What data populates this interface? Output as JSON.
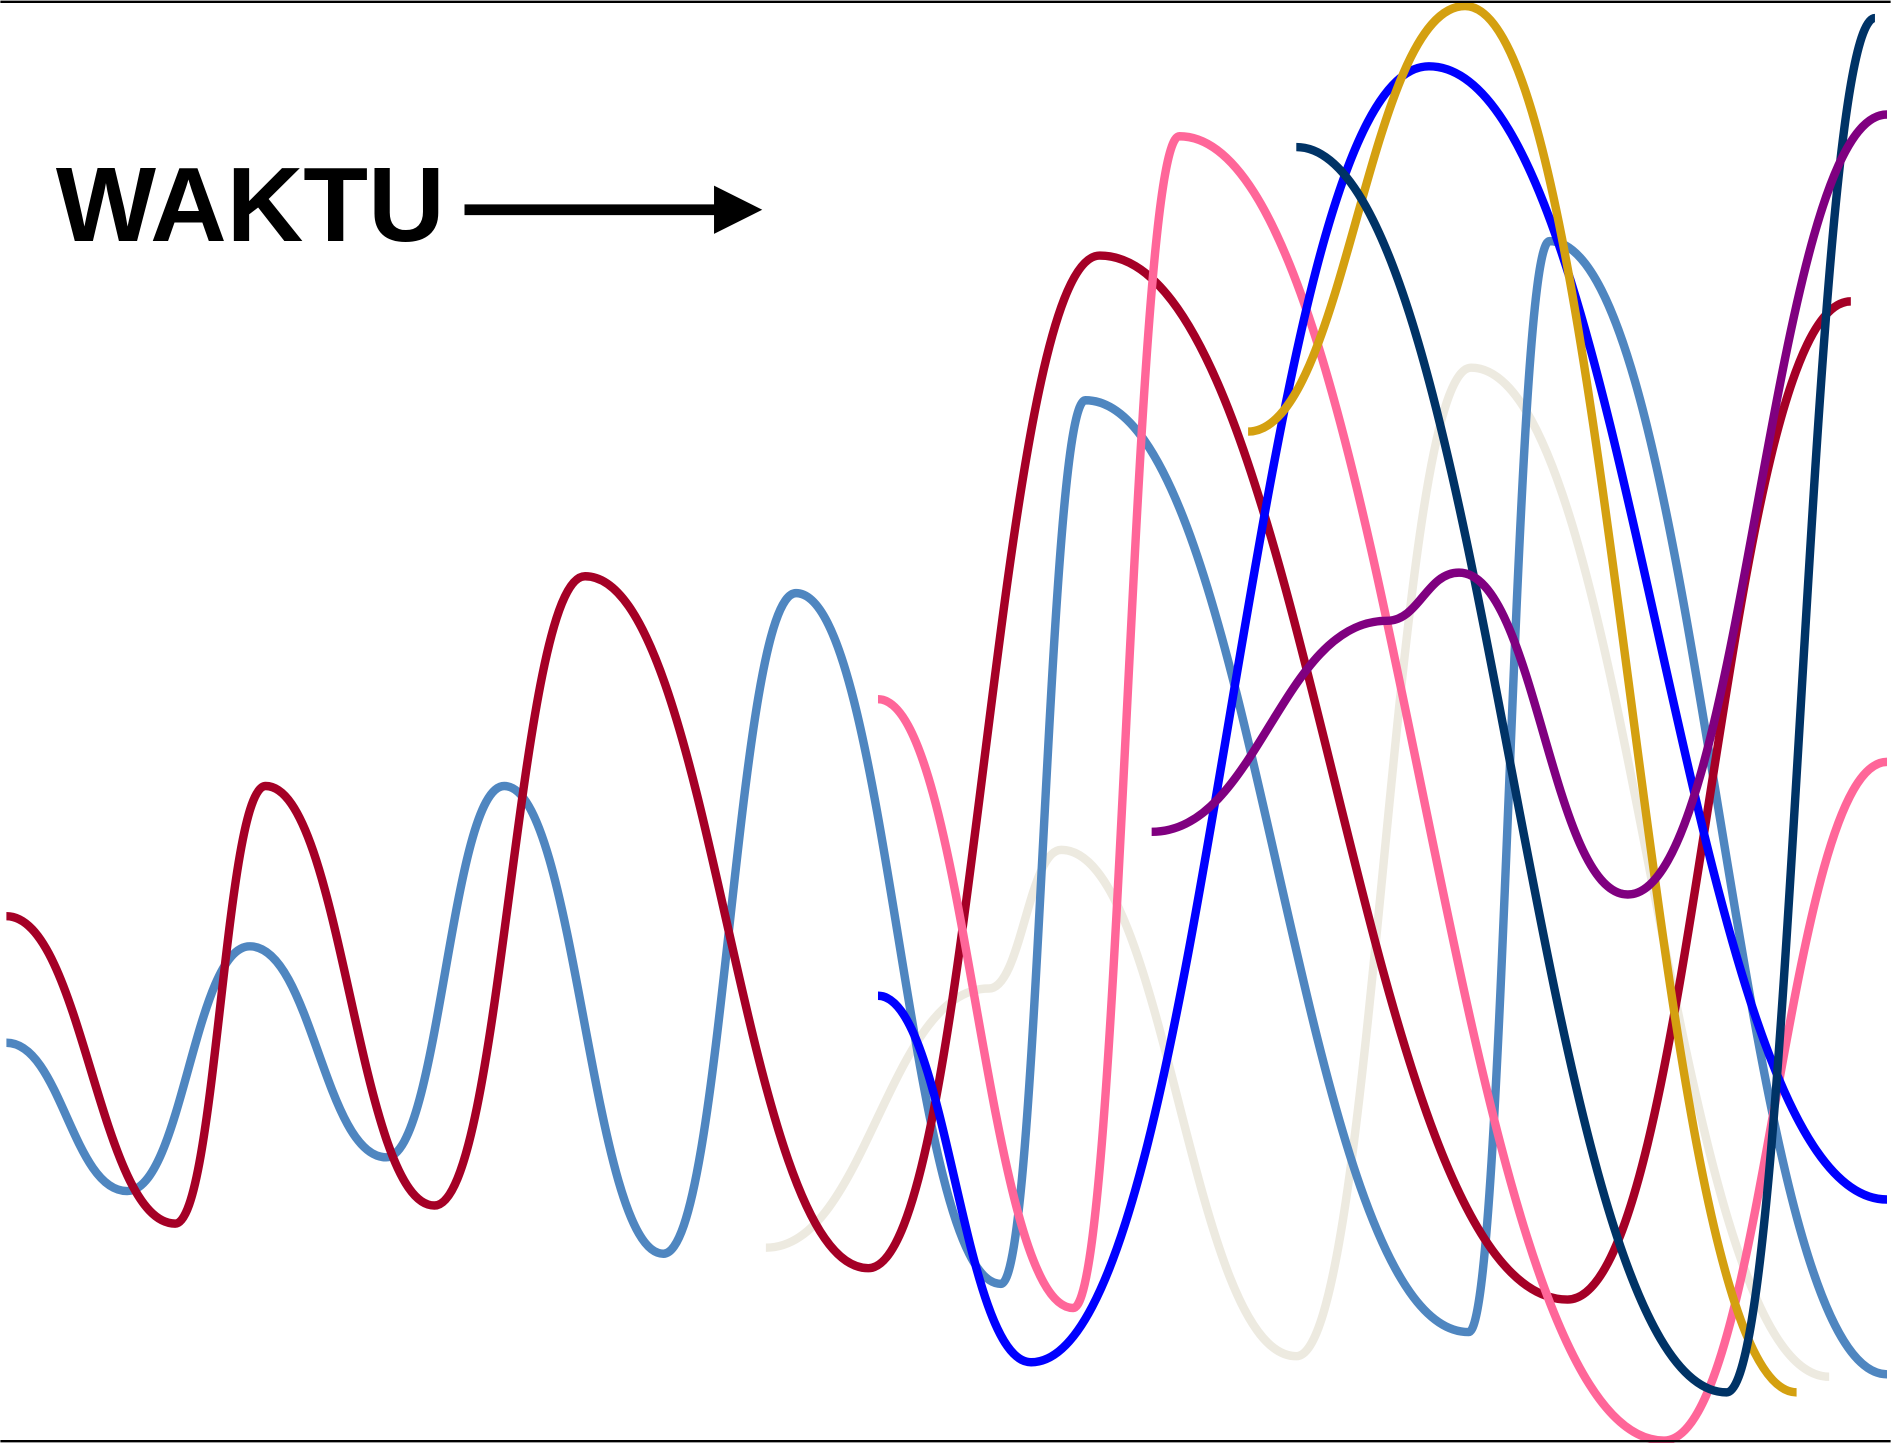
{
  "title": "WAKTU"
}
